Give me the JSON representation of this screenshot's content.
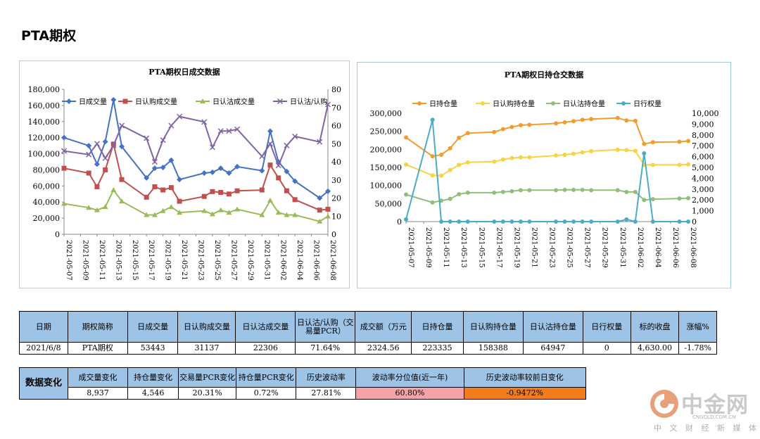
{
  "page": {
    "title": "PTA期权"
  },
  "brand": {
    "cn": "中金网",
    "domain": "CNGOLD.COM.CN",
    "tagline": "中 文 财 经 新 媒 体"
  },
  "chart_data": [
    {
      "type": "line",
      "title": "PTA期权日成交数据",
      "x": [
        "2021-05-07",
        "2021-05-10",
        "2021-05-11",
        "2021-05-12",
        "2021-05-13",
        "2021-05-14",
        "2021-05-17",
        "2021-05-18",
        "2021-05-19",
        "2021-05-20",
        "2021-05-21",
        "2021-05-24",
        "2021-05-25",
        "2021-05-26",
        "2021-05-27",
        "2021-05-28",
        "2021-05-31",
        "2021-06-01",
        "2021-06-02",
        "2021-06-03",
        "2021-06-04",
        "2021-06-07",
        "2021-06-08"
      ],
      "xticks": [
        "2021-05-07",
        "2021-05-09",
        "2021-05-11",
        "2021-05-13",
        "2021-05-15",
        "2021-05-17",
        "2021-05-19",
        "2021-05-21",
        "2021-05-23",
        "2021-05-25",
        "2021-05-27",
        "2021-05-29",
        "2021-05-31",
        "2021-06-02",
        "2021-06-04",
        "2021-06-06",
        "2021-06-08"
      ],
      "ylim": [
        0,
        180000
      ],
      "y2lim": [
        0,
        80
      ],
      "yticks": [
        "0",
        "20,000",
        "40,000",
        "60,000",
        "80,000",
        "100,000",
        "120,000",
        "140,000",
        "160,000",
        "180,000"
      ],
      "y2ticks": [
        "0",
        "10",
        "20",
        "30",
        "40",
        "50",
        "60",
        "70",
        "80"
      ],
      "series": [
        {
          "name": "日成交量",
          "color": "#4472c4",
          "marker": "diamond",
          "axis": "left",
          "values": [
            120000,
            110000,
            87000,
            115000,
            167000,
            109000,
            70000,
            82000,
            83000,
            92000,
            68000,
            76000,
            77000,
            82000,
            76000,
            84000,
            79000,
            128000,
            90000,
            78000,
            66000,
            45000,
            53443
          ]
        },
        {
          "name": "日认购成交量",
          "color": "#c0504d",
          "marker": "square",
          "axis": "left",
          "values": [
            82000,
            76000,
            59000,
            80000,
            112000,
            68000,
            46000,
            59000,
            55000,
            58000,
            41000,
            47000,
            53000,
            52000,
            50000,
            54000,
            55000,
            86000,
            70000,
            54000,
            43000,
            30000,
            31137
          ]
        },
        {
          "name": "日认沽成交量",
          "color": "#9bbb59",
          "marker": "triangle",
          "axis": "left",
          "values": [
            38000,
            33000,
            30000,
            34000,
            55000,
            41000,
            24000,
            24000,
            29000,
            34000,
            27000,
            29000,
            25000,
            30000,
            27000,
            31000,
            24000,
            42000,
            27000,
            24000,
            24000,
            16000,
            22306
          ]
        },
        {
          "name": "日认沽/认购",
          "color": "#8064a2",
          "marker": "x",
          "axis": "right",
          "values": [
            46,
            44,
            50,
            42,
            49,
            60,
            53,
            40,
            52,
            60,
            65,
            62,
            48,
            57,
            57,
            58,
            43,
            50,
            38,
            49,
            54,
            51,
            71.64
          ]
        }
      ]
    },
    {
      "type": "line",
      "title": "PTA期权日持仓交数据",
      "x": [
        "2021-05-07",
        "2021-05-10",
        "2021-05-11",
        "2021-05-12",
        "2021-05-13",
        "2021-05-14",
        "2021-05-17",
        "2021-05-18",
        "2021-05-19",
        "2021-05-20",
        "2021-05-21",
        "2021-05-24",
        "2021-05-25",
        "2021-05-26",
        "2021-05-27",
        "2021-05-28",
        "2021-05-31",
        "2021-06-01",
        "2021-06-02",
        "2021-06-03",
        "2021-06-04",
        "2021-06-07",
        "2021-06-08"
      ],
      "xticks": [
        "2021-05-07",
        "2021-05-09",
        "2021-05-11",
        "2021-05-13",
        "2021-05-15",
        "2021-05-17",
        "2021-05-19",
        "2021-05-21",
        "2021-05-23",
        "2021-05-25",
        "2021-05-27",
        "2021-05-29",
        "2021-05-31",
        "2021-06-02",
        "2021-06-04",
        "2021-06-06",
        "2021-06-08"
      ],
      "ylim": [
        0,
        300000
      ],
      "y2lim": [
        0,
        10000
      ],
      "yticks": [
        "0",
        "50,000",
        "100,000",
        "150,000",
        "200,000",
        "250,000",
        "300,000"
      ],
      "y2ticks": [
        "0",
        "1,000",
        "2,000",
        "3,000",
        "4,000",
        "5,000",
        "6,000",
        "7,000",
        "8,000",
        "9,000",
        "10,000"
      ],
      "series": [
        {
          "name": "日持仓量",
          "color": "#f39c2e",
          "marker": "circle",
          "axis": "left",
          "values": [
            233000,
            181000,
            185000,
            203000,
            232000,
            245000,
            248000,
            256000,
            262000,
            267000,
            268000,
            272000,
            275000,
            278000,
            282000,
            284000,
            287000,
            280000,
            279000,
            215000,
            220000,
            221000,
            223335
          ]
        },
        {
          "name": "日认购持仓量",
          "color": "#f7d443",
          "marker": "circle",
          "axis": "left",
          "values": [
            158000,
            128000,
            127000,
            143000,
            157000,
            164000,
            166000,
            172000,
            176000,
            178000,
            178000,
            183000,
            185000,
            188000,
            192000,
            195000,
            199000,
            198000,
            196000,
            157000,
            157000,
            157000,
            158388
          ]
        },
        {
          "name": "日认沽持仓量",
          "color": "#8fbf78",
          "marker": "circle",
          "axis": "left",
          "values": [
            75000,
            53000,
            58000,
            63000,
            76000,
            80000,
            80000,
            82000,
            84000,
            87000,
            87000,
            87000,
            88000,
            88000,
            88000,
            87000,
            87000,
            82000,
            82000,
            60000,
            62000,
            64000,
            64947
          ]
        },
        {
          "name": "日行权量",
          "color": "#4bacc6",
          "marker": "circle",
          "axis": "right",
          "values": [
            200,
            9400,
            0,
            0,
            0,
            0,
            0,
            0,
            0,
            0,
            0,
            0,
            0,
            0,
            0,
            0,
            0,
            200,
            0,
            6300,
            0,
            0,
            0
          ]
        }
      ]
    }
  ],
  "table1": {
    "headers": [
      "日期",
      "期权简称",
      "日成交量",
      "日认购成交量",
      "日认沽成交量",
      "日认沽/认购（交易量PCR）",
      "成交额（万元",
      "日持仓量",
      "日认购持仓量",
      "日认沽持仓量",
      "日行权量",
      "标的收盘",
      "涨幅%"
    ],
    "row": [
      "2021/6/8",
      "PTA期权",
      "53443",
      "31137",
      "22306",
      "71.64%",
      "2324.56",
      "223335",
      "158388",
      "64947",
      "0",
      "4,630.00",
      "-1.78%"
    ]
  },
  "table2": {
    "label": "数据变化",
    "headers": [
      "成交量变化",
      "持仓量变化",
      "交易量PCR变化",
      "持仓量PCR变化",
      "历史波动率",
      "波动率分位值(近一年)",
      "历史波动率较前日变化"
    ],
    "row": [
      "8,937",
      "4,546",
      "20.31%",
      "0.72%",
      "27.81%",
      "60.80%",
      "-0.9472%"
    ],
    "colors": {
      "percentile": "#f4a4a8",
      "hv_change": "#f07c1e",
      "header": "#9dc3e6",
      "label": "#4f8fd6"
    }
  }
}
